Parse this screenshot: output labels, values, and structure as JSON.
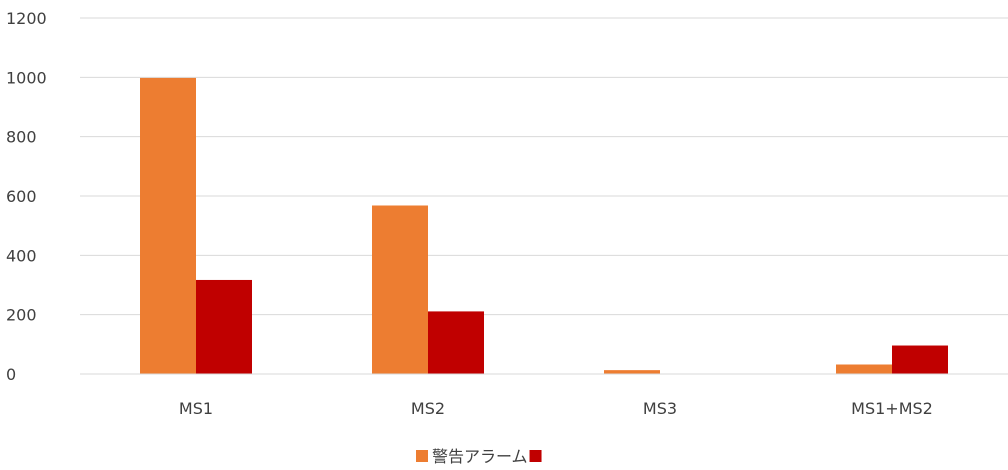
{
  "chart_data": {
    "type": "bar",
    "title": "",
    "xlabel": "",
    "ylabel": "",
    "categories": [
      "MS1",
      "MS2",
      "MS3",
      "MS1+MS2"
    ],
    "series": [
      {
        "name": "警告アラーム",
        "color": "#ED7D31",
        "values": [
          998,
          568,
          13,
          32
        ]
      },
      {
        "name": "",
        "color": "#C00000",
        "values": [
          317,
          211,
          0,
          96
        ]
      }
    ],
    "ylim": [
      0,
      1200
    ],
    "yticks": [
      0,
      200,
      400,
      600,
      800,
      1000,
      1200
    ],
    "grid": true,
    "legend_position": "bottom"
  }
}
